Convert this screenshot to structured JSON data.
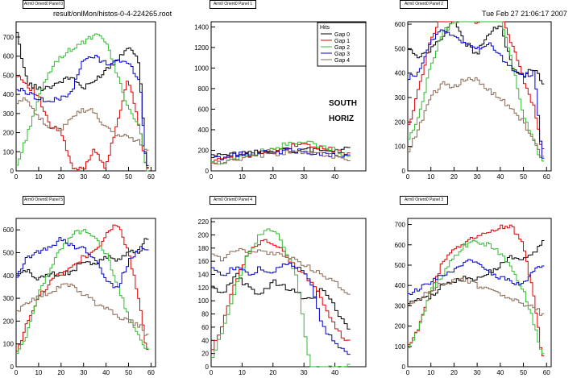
{
  "header": {
    "file_path": "result/onlMon/histos-0-4-224265.root",
    "timestamp": "Tue Feb 27 21:06:17 2007"
  },
  "colors": {
    "gap0": "#000000",
    "gap1": "#e00000",
    "gap2": "#33bb33",
    "gap3": "#0000cc",
    "gap4": "#8a6a55"
  },
  "panels": [
    {
      "title": "Arm0 Orient0 Panel 0"
    },
    {
      "title": "Arm0 Orient0 Panel 1"
    },
    {
      "title": "Arm0 Orient0 Panel 2"
    },
    {
      "title": "Arm0 Orient0 Panel 5"
    },
    {
      "title": "Arm0 Orient0 Panel 4"
    },
    {
      "title": "Arm0 Orient0 Panel 3"
    }
  ],
  "legend": {
    "title": "Hits",
    "entries": [
      "Gap 0",
      "Gap 1",
      "Gap 2",
      "Gap 3",
      "Gap 4"
    ]
  },
  "annotations": {
    "line1": "SOUTH",
    "line2": "HORIZ"
  },
  "chart_data": [
    {
      "type": "line",
      "title": "Arm0 Orient0 Panel 0",
      "xlim": [
        0,
        62
      ],
      "ylim": [
        0,
        780
      ],
      "xticks": [
        0,
        10,
        20,
        30,
        40,
        50,
        60
      ],
      "yticks": [
        0,
        100,
        200,
        300,
        400,
        500,
        600,
        700
      ],
      "series": [
        {
          "name": "Gap 0",
          "x": [
            0,
            5,
            10,
            15,
            20,
            25,
            30,
            35,
            40,
            45,
            50,
            55,
            58
          ],
          "y": [
            740,
            460,
            430,
            440,
            470,
            490,
            430,
            470,
            530,
            580,
            660,
            560,
            10
          ]
        },
        {
          "name": "Gap 1",
          "x": [
            0,
            5,
            10,
            15,
            20,
            25,
            30,
            35,
            40,
            45,
            50,
            55,
            58
          ],
          "y": [
            510,
            450,
            390,
            230,
            210,
            10,
            10,
            120,
            10,
            260,
            480,
            220,
            10
          ]
        },
        {
          "name": "Gap 2",
          "x": [
            0,
            5,
            10,
            15,
            20,
            25,
            30,
            35,
            40,
            45,
            50,
            55,
            58
          ],
          "y": [
            10,
            190,
            380,
            520,
            600,
            640,
            670,
            710,
            680,
            500,
            330,
            230,
            10
          ]
        },
        {
          "name": "Gap 3",
          "x": [
            0,
            5,
            10,
            15,
            20,
            25,
            30,
            35,
            40,
            45,
            50,
            55,
            58
          ],
          "y": [
            430,
            410,
            380,
            360,
            380,
            420,
            580,
            600,
            560,
            580,
            560,
            480,
            20
          ]
        },
        {
          "name": "Gap 4",
          "x": [
            0,
            5,
            10,
            15,
            20,
            25,
            30,
            35,
            40,
            45,
            50,
            55,
            58
          ],
          "y": [
            350,
            380,
            280,
            220,
            220,
            290,
            320,
            310,
            220,
            190,
            180,
            150,
            100
          ]
        }
      ]
    },
    {
      "type": "line",
      "title": "Arm0 Orient0 Panel 1",
      "xlim": [
        0,
        50
      ],
      "ylim": [
        0,
        1450
      ],
      "xticks": [
        0,
        10,
        20,
        30,
        40
      ],
      "yticks": [
        0,
        200,
        400,
        600,
        800,
        1000,
        1200,
        1400
      ],
      "series": [
        {
          "name": "Gap 0",
          "x": [
            0,
            5,
            10,
            15,
            20,
            25,
            30,
            35,
            40,
            44
          ],
          "y": [
            140,
            150,
            170,
            180,
            190,
            200,
            200,
            210,
            190,
            210
          ]
        },
        {
          "name": "Gap 1",
          "x": [
            0,
            5,
            10,
            15,
            20,
            25,
            30,
            35,
            40,
            44
          ],
          "y": [
            90,
            120,
            150,
            170,
            200,
            230,
            250,
            230,
            200,
            150
          ]
        },
        {
          "name": "Gap 2",
          "x": [
            0,
            5,
            10,
            15,
            20,
            25,
            30,
            35,
            40,
            44
          ],
          "y": [
            60,
            100,
            130,
            180,
            220,
            260,
            280,
            250,
            200,
            120
          ]
        },
        {
          "name": "Gap 3",
          "x": [
            0,
            5,
            10,
            15,
            20,
            25,
            30,
            35,
            40,
            44
          ],
          "y": [
            110,
            140,
            160,
            170,
            180,
            200,
            190,
            170,
            150,
            140
          ]
        },
        {
          "name": "Gap 4",
          "x": [
            0,
            5,
            10,
            15,
            20,
            25,
            30,
            35,
            40,
            44
          ],
          "y": [
            80,
            90,
            110,
            140,
            160,
            180,
            190,
            170,
            140,
            110
          ]
        }
      ]
    },
    {
      "type": "line",
      "title": "Arm0 Orient0 Panel 2",
      "xlim": [
        0,
        62
      ],
      "ylim": [
        0,
        610
      ],
      "xticks": [
        0,
        10,
        20,
        30,
        40,
        50,
        60
      ],
      "yticks": [
        0,
        100,
        200,
        300,
        400,
        500,
        600
      ],
      "series": [
        {
          "name": "Gap 0",
          "x": [
            0,
            5,
            10,
            15,
            20,
            25,
            30,
            35,
            40,
            45,
            50,
            55,
            58
          ],
          "y": [
            500,
            460,
            500,
            540,
            620,
            520,
            480,
            560,
            600,
            430,
            390,
            420,
            360
          ]
        },
        {
          "name": "Gap 1",
          "x": [
            0,
            5,
            10,
            15,
            20,
            25,
            30,
            35,
            40,
            45,
            50,
            55,
            58
          ],
          "y": [
            170,
            340,
            540,
            650,
            690,
            640,
            610,
            620,
            640,
            520,
            380,
            250,
            80
          ]
        },
        {
          "name": "Gap 2",
          "x": [
            0,
            5,
            10,
            15,
            20,
            25,
            30,
            35,
            40,
            45,
            50,
            55,
            58
          ],
          "y": [
            120,
            230,
            430,
            570,
            600,
            640,
            660,
            700,
            640,
            450,
            230,
            110,
            40
          ]
        },
        {
          "name": "Gap 3",
          "x": [
            0,
            5,
            10,
            15,
            20,
            25,
            30,
            35,
            40,
            45,
            50,
            55,
            58
          ],
          "y": [
            380,
            400,
            530,
            580,
            550,
            520,
            500,
            520,
            470,
            420,
            390,
            400,
            60
          ]
        },
        {
          "name": "Gap 4",
          "x": [
            0,
            5,
            10,
            15,
            20,
            25,
            30,
            35,
            40,
            45,
            50,
            55,
            58
          ],
          "y": [
            70,
            180,
            300,
            360,
            340,
            380,
            370,
            330,
            300,
            250,
            200,
            120,
            50
          ]
        }
      ]
    },
    {
      "type": "line",
      "title": "Arm0 Orient0 Panel 5",
      "xlim": [
        0,
        62
      ],
      "ylim": [
        0,
        650
      ],
      "xticks": [
        0,
        10,
        20,
        30,
        40,
        50,
        60
      ],
      "yticks": [
        0,
        100,
        200,
        300,
        400,
        500,
        600
      ],
      "series": [
        {
          "name": "Gap 0",
          "x": [
            0,
            5,
            10,
            15,
            20,
            25,
            30,
            35,
            40,
            45,
            50,
            55,
            58
          ],
          "y": [
            400,
            420,
            380,
            410,
            400,
            420,
            460,
            450,
            480,
            470,
            500,
            510,
            560
          ]
        },
        {
          "name": "Gap 1",
          "x": [
            0,
            5,
            10,
            15,
            20,
            25,
            30,
            35,
            40,
            45,
            50,
            55,
            58
          ],
          "y": [
            60,
            190,
            300,
            370,
            410,
            440,
            480,
            500,
            580,
            630,
            500,
            280,
            80
          ]
        },
        {
          "name": "Gap 2",
          "x": [
            0,
            5,
            10,
            15,
            20,
            25,
            30,
            35,
            40,
            45,
            50,
            55,
            58
          ],
          "y": [
            50,
            150,
            320,
            420,
            520,
            580,
            600,
            560,
            500,
            360,
            220,
            120,
            70
          ]
        },
        {
          "name": "Gap 3",
          "x": [
            0,
            5,
            10,
            15,
            20,
            25,
            30,
            35,
            40,
            45,
            50,
            55,
            58
          ],
          "y": [
            390,
            480,
            500,
            520,
            560,
            530,
            520,
            480,
            390,
            340,
            460,
            520,
            520
          ]
        },
        {
          "name": "Gap 4",
          "x": [
            0,
            5,
            10,
            15,
            20,
            25,
            30,
            35,
            40,
            45,
            50,
            55,
            58
          ],
          "y": [
            240,
            280,
            310,
            320,
            360,
            350,
            320,
            280,
            260,
            220,
            200,
            180,
            140
          ]
        }
      ]
    },
    {
      "type": "line",
      "title": "Arm0 Orient0 Panel 4",
      "xlim": [
        0,
        50
      ],
      "ylim": [
        0,
        225
      ],
      "xticks": [
        0,
        10,
        20,
        30,
        40
      ],
      "yticks": [
        0,
        20,
        40,
        60,
        80,
        100,
        120,
        140,
        160,
        180,
        200,
        220
      ],
      "series": [
        {
          "name": "Gap 0",
          "x": [
            0,
            4,
            8,
            12,
            16,
            20,
            24,
            28,
            32,
            36,
            40,
            44
          ],
          "y": [
            120,
            110,
            140,
            120,
            110,
            130,
            120,
            110,
            100,
            120,
            90,
            60
          ]
        },
        {
          "name": "Gap 1",
          "x": [
            0,
            4,
            8,
            12,
            16,
            20,
            24,
            28,
            32,
            36,
            40,
            44
          ],
          "y": [
            20,
            70,
            130,
            170,
            190,
            190,
            170,
            150,
            130,
            100,
            60,
            40
          ]
        },
        {
          "name": "Gap 2",
          "x": [
            0,
            4,
            8,
            12,
            16,
            20,
            24,
            28,
            32,
            36,
            40,
            44
          ],
          "y": [
            10,
            60,
            120,
            170,
            200,
            210,
            180,
            130,
            0,
            0,
            0,
            0
          ]
        },
        {
          "name": "Gap 3",
          "x": [
            0,
            4,
            8,
            12,
            16,
            20,
            24,
            28,
            32,
            36,
            40,
            44
          ],
          "y": [
            150,
            140,
            150,
            140,
            150,
            140,
            160,
            150,
            130,
            60,
            40,
            20
          ]
        },
        {
          "name": "Gap 4",
          "x": [
            0,
            4,
            8,
            12,
            16,
            20,
            24,
            28,
            32,
            36,
            40,
            44
          ],
          "y": [
            170,
            160,
            180,
            170,
            180,
            170,
            170,
            160,
            150,
            140,
            130,
            110
          ]
        }
      ]
    },
    {
      "type": "line",
      "title": "Arm0 Orient0 Panel 3",
      "xlim": [
        0,
        62
      ],
      "ylim": [
        0,
        730
      ],
      "xticks": [
        0,
        10,
        20,
        30,
        40,
        50,
        60
      ],
      "yticks": [
        0,
        100,
        200,
        300,
        400,
        500,
        600,
        700
      ],
      "series": [
        {
          "name": "Gap 0",
          "x": [
            0,
            5,
            10,
            15,
            20,
            25,
            30,
            35,
            40,
            45,
            50,
            55,
            58
          ],
          "y": [
            320,
            330,
            340,
            400,
            420,
            440,
            430,
            460,
            500,
            540,
            530,
            560,
            620
          ]
        },
        {
          "name": "Gap 1",
          "x": [
            0,
            5,
            10,
            15,
            20,
            25,
            30,
            35,
            40,
            45,
            50,
            55,
            58
          ],
          "y": [
            90,
            200,
            370,
            510,
            570,
            610,
            640,
            660,
            690,
            690,
            600,
            320,
            60
          ]
        },
        {
          "name": "Gap 2",
          "x": [
            0,
            5,
            10,
            15,
            20,
            25,
            30,
            35,
            40,
            45,
            50,
            55,
            58
          ],
          "y": [
            80,
            200,
            370,
            450,
            540,
            600,
            620,
            600,
            560,
            480,
            380,
            200,
            60
          ]
        },
        {
          "name": "Gap 3",
          "x": [
            0,
            5,
            10,
            15,
            20,
            25,
            30,
            35,
            40,
            45,
            50,
            55,
            58
          ],
          "y": [
            360,
            380,
            420,
            450,
            480,
            520,
            510,
            460,
            440,
            420,
            400,
            490,
            500
          ]
        },
        {
          "name": "Gap 4",
          "x": [
            0,
            5,
            10,
            15,
            20,
            25,
            30,
            35,
            40,
            45,
            50,
            55,
            58
          ],
          "y": [
            290,
            330,
            380,
            410,
            420,
            430,
            400,
            390,
            350,
            330,
            310,
            290,
            260
          ]
        }
      ]
    }
  ]
}
